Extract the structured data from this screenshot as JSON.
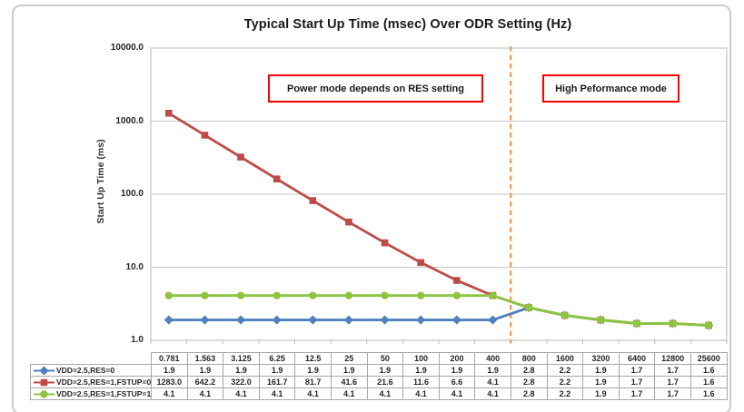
{
  "chart_data": {
    "type": "line",
    "title": "Typical Start Up Time (msec) Over ODR Setting (Hz)",
    "ylabel": "Start Up Time (ms)",
    "xlabel": "",
    "y_scale": "log",
    "ylim": [
      1,
      10000
    ],
    "y_ticks": [
      {
        "label": "10000.0",
        "value": 10000
      },
      {
        "label": "1000.0",
        "value": 1000
      },
      {
        "label": "100.0",
        "value": 100
      },
      {
        "label": "10.0",
        "value": 10
      },
      {
        "label": "1.0",
        "value": 1
      }
    ],
    "grid": "horizontal-major",
    "legend_position": "data-table-left-keys",
    "categories": [
      "0.781",
      "1.563",
      "3.125",
      "6.25",
      "12.5",
      "25",
      "50",
      "100",
      "200",
      "400",
      "800",
      "1600",
      "3200",
      "6400",
      "12800",
      "25600"
    ],
    "series": [
      {
        "name": "VDD=2.5,RES=0",
        "color": "#4F81BD",
        "marker": "diamond",
        "values": [
          1.9,
          1.9,
          1.9,
          1.9,
          1.9,
          1.9,
          1.9,
          1.9,
          1.9,
          1.9,
          2.8,
          2.2,
          1.9,
          1.7,
          1.7,
          1.6
        ],
        "labels": [
          "1.9",
          "1.9",
          "1.9",
          "1.9",
          "1.9",
          "1.9",
          "1.9",
          "1.9",
          "1.9",
          "1.9",
          "2.8",
          "2.2",
          "1.9",
          "1.7",
          "1.7",
          "1.6"
        ]
      },
      {
        "name": "VDD=2.5,RES=1,FSTUP=0",
        "color": "#BE4B48",
        "marker": "square",
        "values": [
          1283.0,
          642.2,
          322.0,
          161.7,
          81.7,
          41.6,
          21.6,
          11.6,
          6.6,
          4.1,
          2.8,
          2.2,
          1.9,
          1.7,
          1.7,
          1.6
        ],
        "labels": [
          "1283.0",
          "642.2",
          "322.0",
          "161.7",
          "81.7",
          "41.6",
          "21.6",
          "11.6",
          "6.6",
          "4.1",
          "2.8",
          "2.2",
          "1.9",
          "1.7",
          "1.7",
          "1.6"
        ]
      },
      {
        "name": "VDD=2.5,RES=1,FSTUP=1",
        "color": "#8CC540",
        "marker": "circle",
        "values": [
          4.1,
          4.1,
          4.1,
          4.1,
          4.1,
          4.1,
          4.1,
          4.1,
          4.1,
          4.1,
          2.8,
          2.2,
          1.9,
          1.7,
          1.7,
          1.6
        ],
        "labels": [
          "4.1",
          "4.1",
          "4.1",
          "4.1",
          "4.1",
          "4.1",
          "4.1",
          "4.1",
          "4.1",
          "4.1",
          "2.8",
          "2.2",
          "1.9",
          "1.7",
          "1.7",
          "1.6"
        ]
      }
    ]
  },
  "annotations": {
    "left_box": "Power mode depends on RES setting",
    "right_box": "High Peformance mode",
    "divider_after_category": "400",
    "divider_color": "#F79646",
    "box_border_color": "#FF0000"
  },
  "colors": {
    "gridline": "#c6c6c6",
    "plot_border": "#b7b7b7",
    "table_border": "#a6a6a6",
    "outer_frame": "#cbcbcb"
  }
}
